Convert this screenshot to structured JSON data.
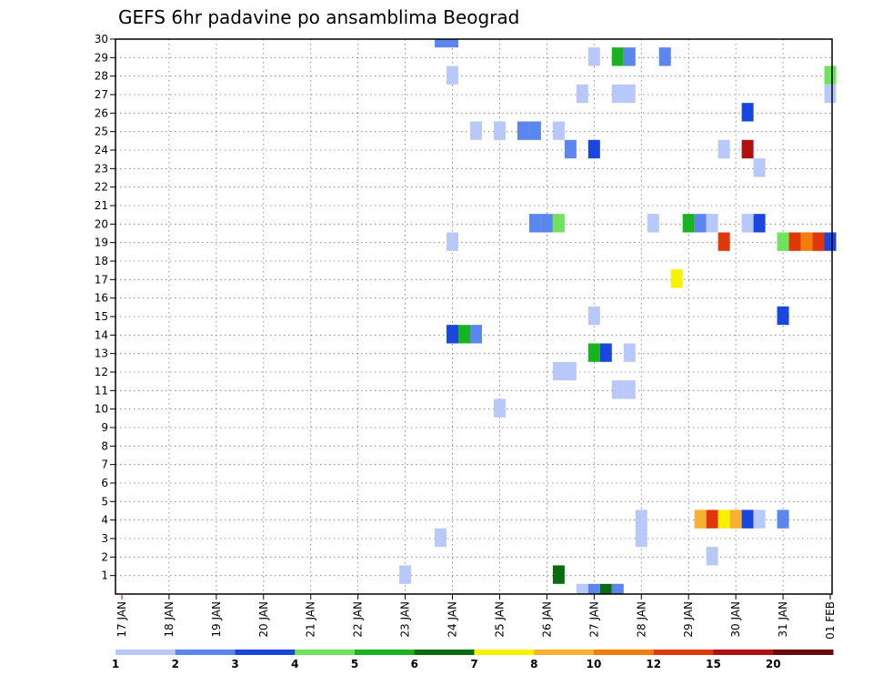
{
  "chart_data": {
    "type": "heatmap",
    "title": "GEFS 6hr padavine po ansamblima Beograd",
    "x_tick_labels": [
      "17 JAN",
      "18 JAN",
      "19 JAN",
      "20 JAN",
      "21 JAN",
      "22 JAN",
      "23 JAN",
      "24 JAN",
      "25 JAN",
      "26 JAN",
      "27 JAN",
      "28 JAN",
      "29 JAN",
      "30 JAN",
      "31 JAN",
      "01 FEB"
    ],
    "y_tick_labels": [
      "1",
      "2",
      "3",
      "4",
      "5",
      "6",
      "7",
      "8",
      "9",
      "10",
      "11",
      "12",
      "13",
      "14",
      "15",
      "16",
      "17",
      "18",
      "19",
      "20",
      "21",
      "22",
      "23",
      "24",
      "25",
      "26",
      "27",
      "28",
      "29",
      "30"
    ],
    "xlim_days": [
      0,
      15
    ],
    "ylim": [
      0,
      30
    ],
    "grid": true,
    "legend": {
      "placement": "bottom",
      "labels": [
        "1",
        "2",
        "3",
        "4",
        "5",
        "6",
        "7",
        "8",
        "10",
        "12",
        "15",
        "20"
      ],
      "colors": [
        "#b8c8f8",
        "#5b86ee",
        "#1a46e0",
        "#6fe25e",
        "#19b31f",
        "#0a6b10",
        "#f8f200",
        "#f8b030",
        "#f47c0c",
        "#e0380a",
        "#b01010",
        "#6a0a0a"
      ]
    },
    "cells": [
      {
        "member": 30,
        "day": 6.75,
        "level": 2
      },
      {
        "member": 30,
        "day": 7.0,
        "level": 2
      },
      {
        "member": 29,
        "day": 10.0,
        "level": 1
      },
      {
        "member": 29,
        "day": 10.5,
        "level": 5
      },
      {
        "member": 29,
        "day": 10.75,
        "level": 2
      },
      {
        "member": 29,
        "day": 11.5,
        "level": 2
      },
      {
        "member": 28,
        "day": 7.0,
        "level": 1
      },
      {
        "member": 28,
        "day": 15.0,
        "level": 4
      },
      {
        "member": 27,
        "day": 9.75,
        "level": 1
      },
      {
        "member": 27,
        "day": 10.5,
        "level": 1
      },
      {
        "member": 27,
        "day": 10.75,
        "level": 1
      },
      {
        "member": 27,
        "day": 15.0,
        "level": 1
      },
      {
        "member": 26,
        "day": 13.25,
        "level": 3
      },
      {
        "member": 25,
        "day": 7.5,
        "level": 1
      },
      {
        "member": 25,
        "day": 8.0,
        "level": 1
      },
      {
        "member": 25,
        "day": 8.5,
        "level": 2
      },
      {
        "member": 25,
        "day": 8.75,
        "level": 2
      },
      {
        "member": 25,
        "day": 9.25,
        "level": 1
      },
      {
        "member": 24,
        "day": 9.5,
        "level": 2
      },
      {
        "member": 24,
        "day": 10.0,
        "level": 3
      },
      {
        "member": 24,
        "day": 12.75,
        "level": 1
      },
      {
        "member": 24,
        "day": 13.25,
        "level": 11
      },
      {
        "member": 23,
        "day": 13.5,
        "level": 1
      },
      {
        "member": 20,
        "day": 8.75,
        "level": 2
      },
      {
        "member": 20,
        "day": 9.0,
        "level": 2
      },
      {
        "member": 20,
        "day": 9.25,
        "level": 4
      },
      {
        "member": 20,
        "day": 11.25,
        "level": 1
      },
      {
        "member": 20,
        "day": 12.0,
        "level": 5
      },
      {
        "member": 20,
        "day": 12.25,
        "level": 2
      },
      {
        "member": 20,
        "day": 12.5,
        "level": 1
      },
      {
        "member": 20,
        "day": 13.25,
        "level": 1
      },
      {
        "member": 20,
        "day": 13.5,
        "level": 3
      },
      {
        "member": 19,
        "day": 7.0,
        "level": 1
      },
      {
        "member": 19,
        "day": 12.75,
        "level": 10
      },
      {
        "member": 19,
        "day": 14.0,
        "level": 4
      },
      {
        "member": 19,
        "day": 14.25,
        "level": 10
      },
      {
        "member": 19,
        "day": 14.5,
        "level": 9
      },
      {
        "member": 19,
        "day": 14.75,
        "level": 10
      },
      {
        "member": 19,
        "day": 15.0,
        "level": 3
      },
      {
        "member": 17,
        "day": 11.75,
        "level": 7
      },
      {
        "member": 15,
        "day": 10.0,
        "level": 1
      },
      {
        "member": 15,
        "day": 14.0,
        "level": 3
      },
      {
        "member": 14,
        "day": 7.0,
        "level": 3
      },
      {
        "member": 14,
        "day": 7.25,
        "level": 5
      },
      {
        "member": 14,
        "day": 7.5,
        "level": 2
      },
      {
        "member": 13,
        "day": 10.0,
        "level": 5
      },
      {
        "member": 13,
        "day": 10.25,
        "level": 3
      },
      {
        "member": 13,
        "day": 10.75,
        "level": 1
      },
      {
        "member": 12,
        "day": 9.25,
        "level": 1
      },
      {
        "member": 12,
        "day": 9.5,
        "level": 1
      },
      {
        "member": 11,
        "day": 10.5,
        "level": 1
      },
      {
        "member": 11,
        "day": 10.75,
        "level": 1
      },
      {
        "member": 10,
        "day": 8.0,
        "level": 1
      },
      {
        "member": 4,
        "day": 11.0,
        "level": 1
      },
      {
        "member": 4,
        "day": 12.25,
        "level": 8
      },
      {
        "member": 4,
        "day": 12.5,
        "level": 10
      },
      {
        "member": 4,
        "day": 12.75,
        "level": 7
      },
      {
        "member": 4,
        "day": 13.0,
        "level": 8
      },
      {
        "member": 4,
        "day": 13.25,
        "level": 3
      },
      {
        "member": 4,
        "day": 13.5,
        "level": 1
      },
      {
        "member": 4,
        "day": 14.0,
        "level": 2
      },
      {
        "member": 3,
        "day": 6.75,
        "level": 1
      },
      {
        "member": 3,
        "day": 11.0,
        "level": 1
      },
      {
        "member": 2,
        "day": 12.5,
        "level": 1
      },
      {
        "member": 1,
        "day": 6.0,
        "level": 1
      },
      {
        "member": 1,
        "day": 9.25,
        "level": 6
      },
      {
        "member": 0,
        "day": 9.75,
        "level": 1
      },
      {
        "member": 0,
        "day": 10.0,
        "level": 2
      },
      {
        "member": 0,
        "day": 10.25,
        "level": 6
      },
      {
        "member": 0,
        "day": 10.5,
        "level": 2
      }
    ]
  }
}
